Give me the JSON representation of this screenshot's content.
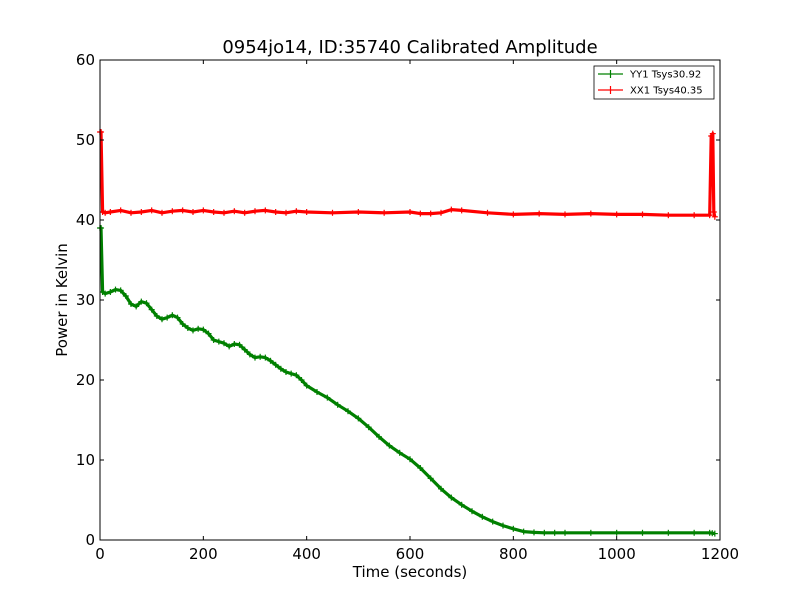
{
  "chart_data": {
    "type": "line",
    "title": "0954jo14, ID:35740 Calibrated Amplitude",
    "xlabel": "Time (seconds)",
    "ylabel": "Power in Kelvin",
    "xlim": [
      0,
      1200
    ],
    "ylim": [
      0,
      60
    ],
    "xticks": [
      0,
      200,
      400,
      600,
      800,
      1000,
      1200
    ],
    "yticks": [
      0,
      10,
      20,
      30,
      40,
      50,
      60
    ],
    "grid": false,
    "legend_position": "top-right",
    "series": [
      {
        "name": "YY1 Tsys30.92",
        "color": "#008000",
        "x": [
          0,
          2,
          5,
          10,
          20,
          30,
          40,
          50,
          60,
          70,
          80,
          90,
          100,
          110,
          120,
          130,
          140,
          150,
          160,
          170,
          180,
          190,
          200,
          210,
          220,
          230,
          240,
          250,
          260,
          270,
          280,
          290,
          300,
          310,
          320,
          330,
          340,
          350,
          360,
          370,
          380,
          390,
          400,
          420,
          440,
          460,
          480,
          500,
          520,
          540,
          560,
          580,
          600,
          620,
          640,
          660,
          680,
          700,
          720,
          740,
          760,
          780,
          800,
          820,
          840,
          860,
          880,
          900,
          950,
          1000,
          1050,
          1100,
          1150,
          1180,
          1185,
          1190
        ],
        "y": [
          39,
          39,
          31,
          30.8,
          31,
          31.3,
          31.2,
          30.5,
          29.5,
          29.2,
          29.8,
          29.6,
          28.8,
          28,
          27.6,
          27.8,
          28.1,
          27.8,
          27,
          26.5,
          26.2,
          26.4,
          26.3,
          25.8,
          25,
          24.8,
          24.6,
          24.2,
          24.5,
          24.4,
          23.8,
          23.2,
          22.8,
          22.9,
          22.8,
          22.4,
          21.9,
          21.4,
          21,
          20.8,
          20.6,
          20,
          19.3,
          18.5,
          17.8,
          16.9,
          16.1,
          15.2,
          14.1,
          12.9,
          11.8,
          10.9,
          10.1,
          9,
          7.7,
          6.4,
          5.3,
          4.4,
          3.6,
          2.9,
          2.3,
          1.8,
          1.4,
          1.05,
          0.95,
          0.9,
          0.9,
          0.9,
          0.9,
          0.9,
          0.9,
          0.9,
          0.9,
          0.9,
          0.85,
          0.8
        ]
      },
      {
        "name": "XX1 Tsys40.35",
        "color": "#ff0000",
        "x": [
          0,
          2,
          5,
          10,
          20,
          40,
          60,
          80,
          100,
          120,
          140,
          160,
          180,
          200,
          220,
          240,
          260,
          280,
          300,
          320,
          340,
          360,
          380,
          400,
          450,
          500,
          550,
          600,
          620,
          640,
          660,
          680,
          700,
          750,
          800,
          850,
          900,
          950,
          1000,
          1050,
          1100,
          1150,
          1180,
          1183,
          1186,
          1188,
          1190
        ],
        "y": [
          51,
          51,
          41,
          40.9,
          41,
          41.2,
          40.9,
          41,
          41.2,
          40.9,
          41.1,
          41.2,
          41,
          41.2,
          41,
          40.9,
          41.1,
          40.9,
          41.1,
          41.2,
          41,
          40.9,
          41.1,
          41,
          40.9,
          41,
          40.9,
          41,
          40.8,
          40.8,
          40.9,
          41.3,
          41.2,
          40.9,
          40.7,
          40.8,
          40.7,
          40.8,
          40.7,
          40.7,
          40.6,
          40.6,
          40.6,
          50.5,
          50.8,
          41,
          40.4
        ]
      }
    ]
  }
}
